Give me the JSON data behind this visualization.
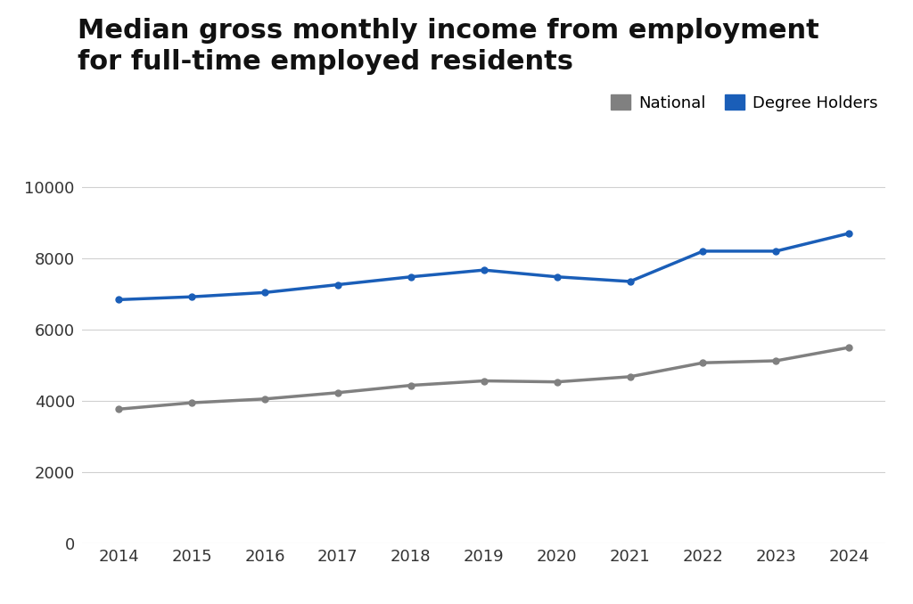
{
  "title": "Median gross monthly income from employment\nfor full-time employed residents",
  "years": [
    2014,
    2015,
    2016,
    2017,
    2018,
    2019,
    2020,
    2021,
    2022,
    2023,
    2024
  ],
  "national": [
    3770,
    3949,
    4056,
    4232,
    4437,
    4563,
    4534,
    4680,
    5070,
    5126,
    5500
  ],
  "degree_holders": [
    6840,
    6920,
    7040,
    7260,
    7480,
    7670,
    7480,
    7350,
    8200,
    8200,
    8700
  ],
  "national_color": "#808080",
  "degree_color": "#1a5eb8",
  "legend_national": "National",
  "legend_degree": "Degree Holders",
  "ylim": [
    0,
    10500
  ],
  "yticks": [
    0,
    2000,
    4000,
    6000,
    8000,
    10000
  ],
  "ytick_labels": [
    "0",
    "2000",
    "4000",
    "6000",
    "8000",
    "10000"
  ],
  "bg_color": "#ffffff",
  "grid_color": "#d0d0d0",
  "title_fontsize": 22,
  "legend_fontsize": 13,
  "tick_fontsize": 13,
  "line_width": 2.5,
  "marker_size": 5
}
